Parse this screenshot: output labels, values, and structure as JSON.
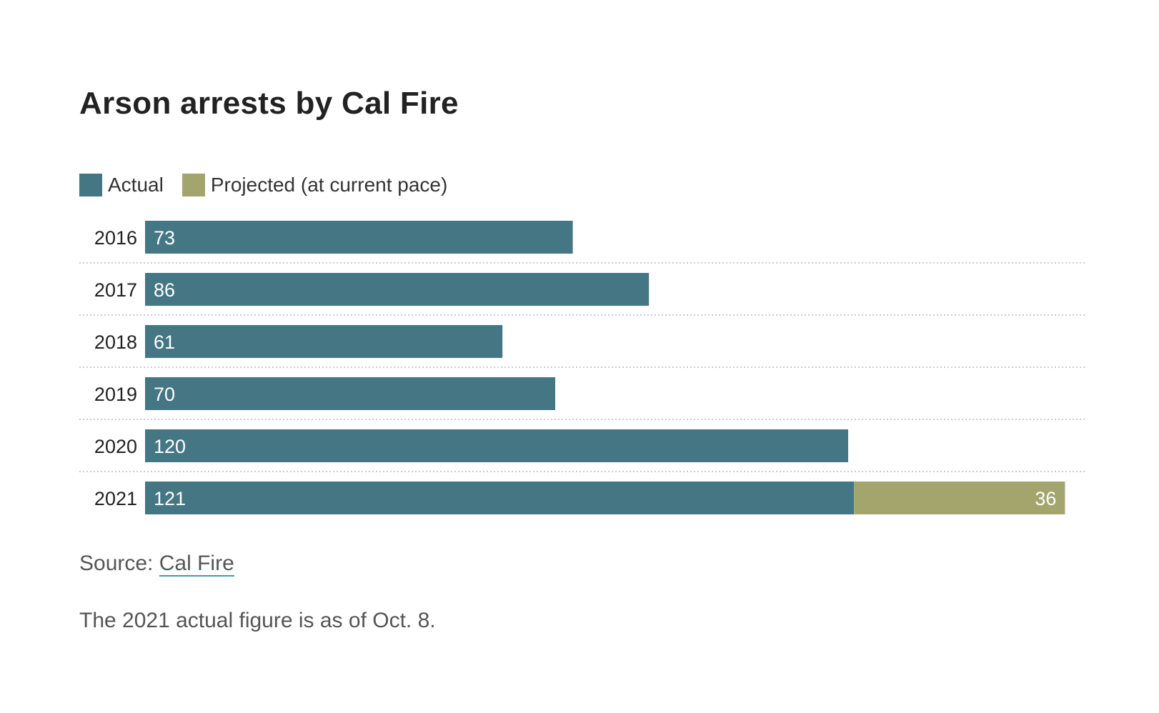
{
  "chart_data": {
    "type": "bar",
    "stacked": true,
    "orientation": "horizontal",
    "title": "Arson arrests by Cal Fire",
    "categories": [
      "2016",
      "2017",
      "2018",
      "2019",
      "2020",
      "2021"
    ],
    "series": [
      {
        "name": "Actual",
        "values": [
          73,
          86,
          61,
          70,
          120,
          121
        ],
        "color": "#447684"
      },
      {
        "name": "Projected (at current pace)",
        "values": [
          0,
          0,
          0,
          0,
          0,
          36
        ],
        "color": "#a3a56d"
      }
    ],
    "legend_position": "top-left",
    "grid": "dotted row separators"
  },
  "footer": {
    "source_prefix": "Source: ",
    "source_link": "Cal Fire",
    "note": "The 2021 actual figure is as of Oct. 8."
  }
}
